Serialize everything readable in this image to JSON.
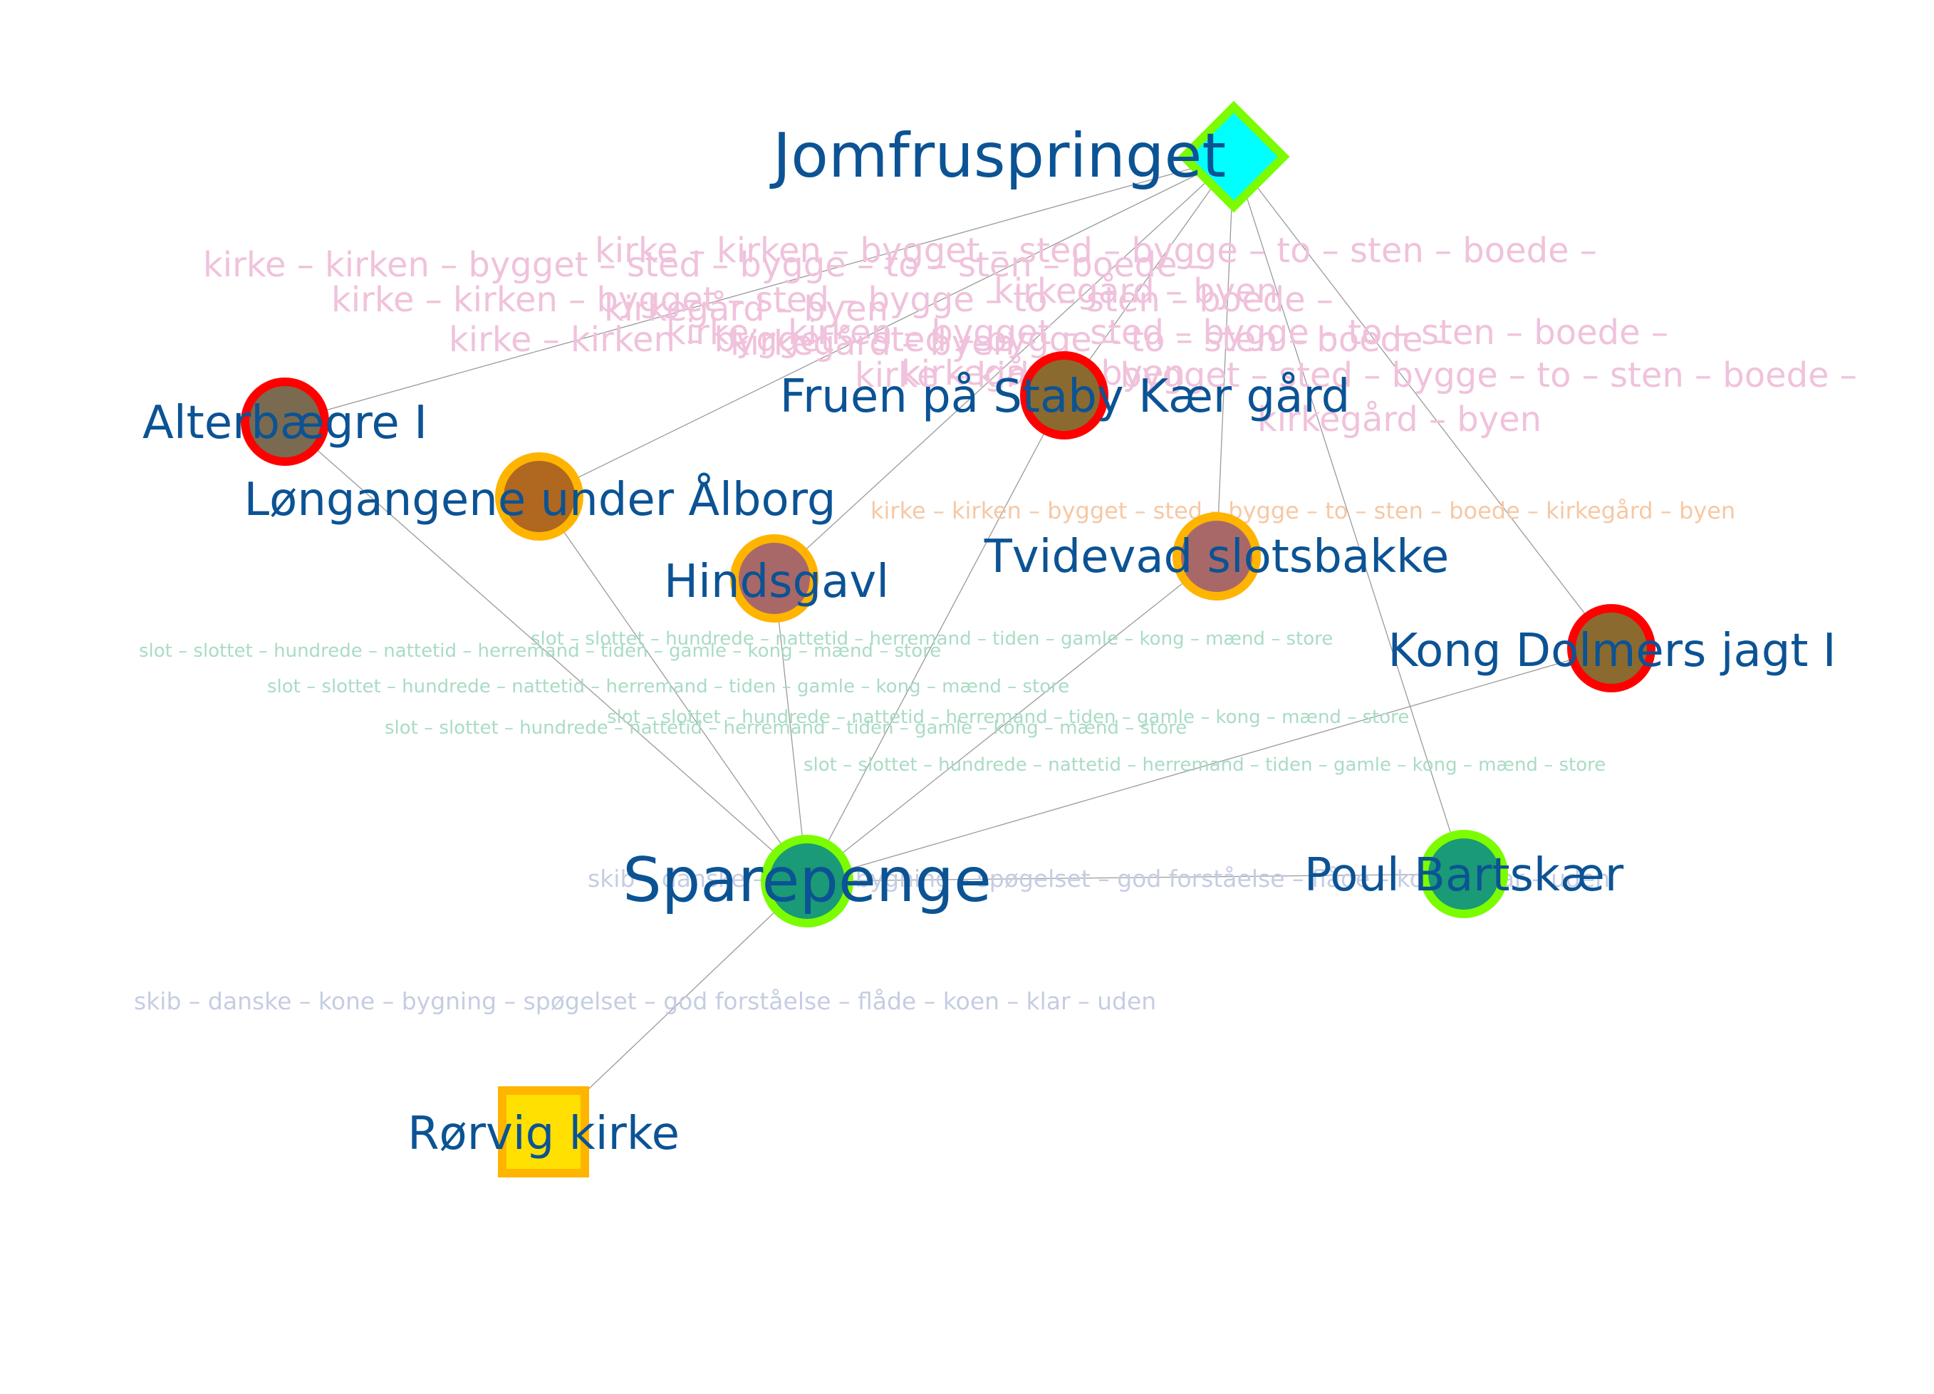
{
  "colors": {
    "label": "#0b5394",
    "edge": "#9a9a9a",
    "topic_kirke": "#f0c2dc",
    "topic_kirke_small": "#f6c8a4",
    "topic_slot": "#a9dcc4",
    "topic_skib": "#c5cde3"
  },
  "nodes": [
    {
      "id": "jomfruspringet",
      "label": "Jomfruspringet",
      "shape": "diamond",
      "fill": "#00ffff",
      "stroke": "#7cfc00"
    },
    {
      "id": "alterbaegre",
      "label": "Alterbægre I",
      "shape": "circle",
      "fill": "#7a6a4f",
      "stroke": "#ff0000"
    },
    {
      "id": "fruen",
      "label": "Fruen på Staby Kær gård",
      "shape": "circle",
      "fill": "#8b6a2f",
      "stroke": "#ff0000"
    },
    {
      "id": "longangene",
      "label": "Løngangene under Ålborg",
      "shape": "circle",
      "fill": "#b0671f",
      "stroke": "#ffb400"
    },
    {
      "id": "hindsgavl",
      "label": "Hindsgavl",
      "shape": "circle",
      "fill": "#a86868",
      "stroke": "#ffb400"
    },
    {
      "id": "tvidevad",
      "label": "Tvidevad slotsbakke",
      "shape": "circle",
      "fill": "#a86868",
      "stroke": "#ffb400"
    },
    {
      "id": "kongdolmer",
      "label": "Kong Dolmers jagt I",
      "shape": "circle",
      "fill": "#8b6a2f",
      "stroke": "#ff0000"
    },
    {
      "id": "sparepenge",
      "label": "Sparepenge",
      "shape": "circle",
      "fill": "#1a9a76",
      "stroke": "#7cfc00"
    },
    {
      "id": "poulbartskaer",
      "label": "Poul Bartskær",
      "shape": "circle",
      "fill": "#1a9a76",
      "stroke": "#7cfc00"
    },
    {
      "id": "rorvig",
      "label": "Rørvig kirke",
      "shape": "square",
      "fill": "#ffe000",
      "stroke": "#ffb400"
    }
  ],
  "edges": [
    [
      "jomfruspringet",
      "alterbaegre"
    ],
    [
      "jomfruspringet",
      "longangene"
    ],
    [
      "jomfruspringet",
      "fruen"
    ],
    [
      "jomfruspringet",
      "hindsgavl"
    ],
    [
      "jomfruspringet",
      "tvidevad"
    ],
    [
      "jomfruspringet",
      "poulbartskaer"
    ],
    [
      "jomfruspringet",
      "kongdolmer"
    ],
    [
      "alterbaegre",
      "sparepenge"
    ],
    [
      "longangene",
      "sparepenge"
    ],
    [
      "hindsgavl",
      "sparepenge"
    ],
    [
      "fruen",
      "sparepenge"
    ],
    [
      "tvidevad",
      "sparepenge"
    ],
    [
      "kongdolmer",
      "sparepenge"
    ],
    [
      "sparepenge",
      "poulbartskaer"
    ],
    [
      "sparepenge",
      "rorvig"
    ]
  ],
  "topics": {
    "kirke": "kirke – kirken – bygget – sted – bygge – to – sten – boede – kirkegård – byen",
    "kirke_a": "kirke – kirken – bygget – sted – bygge – to – sten – boede –",
    "kirke_b": "kirkegård – byen",
    "slot": "slot – slottet – hundrede – nattetid – herremand – tiden – gamle – kong – mænd – store",
    "skib": "skib – danske – kone – bygning – spøgelset – god forståelse – flåde – koen – klar – uden"
  }
}
